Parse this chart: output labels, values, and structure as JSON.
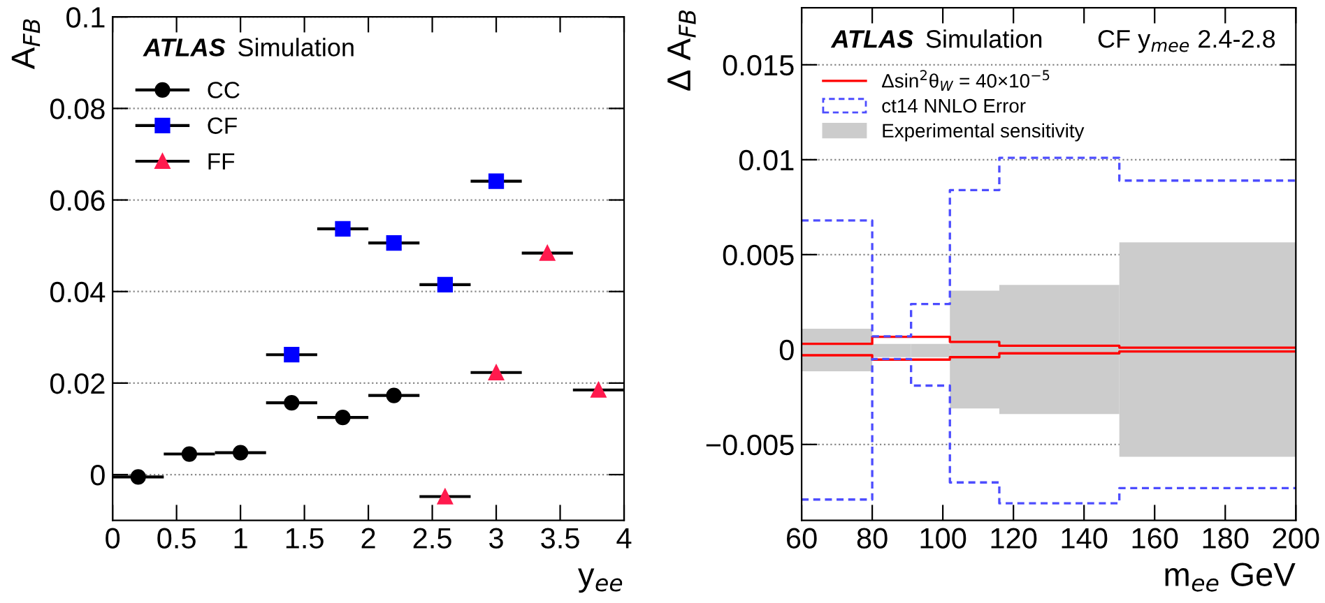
{
  "chart_data": [
    {
      "type": "scatter",
      "xlabel": "y$_{ee}$",
      "ylabel": "A$_{FB}$",
      "xlim": [
        0,
        4
      ],
      "ylim": [
        -0.01,
        0.1
      ],
      "xticks": [
        0,
        0.5,
        1,
        1.5,
        2,
        2.5,
        3,
        3.5,
        4
      ],
      "yticks": [
        0,
        0.02,
        0.04,
        0.06,
        0.08,
        0.1
      ],
      "grid": "y",
      "legend": "top left",
      "annotations": [
        "ATLAS",
        "Simulation"
      ],
      "series": [
        {
          "name": "CC",
          "color": "#000000",
          "marker": "circle",
          "x": [
            0.2,
            0.6,
            1.0,
            1.4,
            1.8,
            2.2
          ],
          "values": [
            -0.0005,
            0.0045,
            0.0048,
            0.0157,
            0.0125,
            0.0173
          ],
          "xerrors": [
            0.2,
            0.2,
            0.2,
            0.2,
            0.2,
            0.2
          ]
        },
        {
          "name": "CF",
          "color": "#0000ff",
          "marker": "square",
          "x": [
            1.4,
            1.8,
            2.2,
            2.6,
            3.0
          ],
          "values": [
            0.0262,
            0.0537,
            0.0506,
            0.0415,
            0.0641
          ],
          "xerrors": [
            0.2,
            0.2,
            0.2,
            0.2,
            0.2
          ]
        },
        {
          "name": "FF",
          "color": "#ff1a4d",
          "marker": "triangle",
          "x": [
            2.6,
            3.0,
            3.4,
            3.8
          ],
          "values": [
            -0.0048,
            0.0223,
            0.0484,
            0.0185
          ],
          "xerrors": [
            0.2,
            0.2,
            0.2,
            0.2
          ]
        }
      ]
    },
    {
      "type": "step",
      "xlabel": "m$_{ee}$ GeV",
      "ylabel": "Δ A$_{FB}$",
      "xlim": [
        60,
        200
      ],
      "ylim": [
        -0.009,
        0.018
      ],
      "xticks": [
        60,
        80,
        100,
        120,
        140,
        160,
        180,
        200
      ],
      "yticks": [
        -0.005,
        0,
        0.005,
        0.01,
        0.015
      ],
      "grid": "y",
      "legend": "top left",
      "annotations": [
        "ATLAS",
        "Simulation",
        "CF y$_{mee}$ 2.4-2.8"
      ],
      "series": [
        {
          "type": "step",
          "name": "Δsin$^{2}$θ$_{W}$ = 40×10$^{−5}$",
          "color": "#ff0000",
          "line_style": "solid",
          "x": [
            60,
            80,
            91,
            102,
            116,
            150,
            200
          ],
          "values": [
            0.0003,
            0.00067,
            0.00067,
            0.0004,
            0.0002,
            0.0001,
            0.0001
          ]
        },
        {
          "type": "step",
          "color": "#ff0000",
          "line_style": "solid",
          "x": [
            60,
            80,
            91,
            102,
            116,
            150,
            200
          ],
          "values": [
            -0.0003,
            -0.00053,
            -0.00053,
            -0.0004,
            -0.0002,
            -0.0001,
            -0.0001
          ]
        },
        {
          "type": "step",
          "name": "ct14 NNLO Error",
          "color": "#4d4dff",
          "line_style": "dashed",
          "x": [
            60,
            80,
            91,
            102,
            116,
            150,
            200
          ],
          "values": [
            0.0068,
            0.0007,
            0.0024,
            0.0084,
            0.0101,
            0.0089,
            0.0089
          ]
        },
        {
          "type": "step",
          "color": "#4d4dff",
          "line_style": "dashed",
          "x": [
            60,
            80,
            91,
            102,
            116,
            150,
            200
          ],
          "values": [
            -0.0079,
            -0.0005,
            -0.0019,
            -0.007,
            -0.0081,
            -0.0073,
            -0.0073
          ]
        },
        {
          "type": "bar",
          "name": "Experimental sensitivity",
          "color": "#cccccc",
          "x": [
            70,
            85.5,
            96.5,
            109,
            133,
            175
          ],
          "base": [
            -0.00115,
            -0.0004,
            -0.0004,
            -0.0031,
            -0.0034,
            -0.00565
          ],
          "values": [
            0.00225,
            0.0007,
            0.0007,
            0.0062,
            0.0068,
            0.0113
          ]
        }
      ]
    }
  ]
}
